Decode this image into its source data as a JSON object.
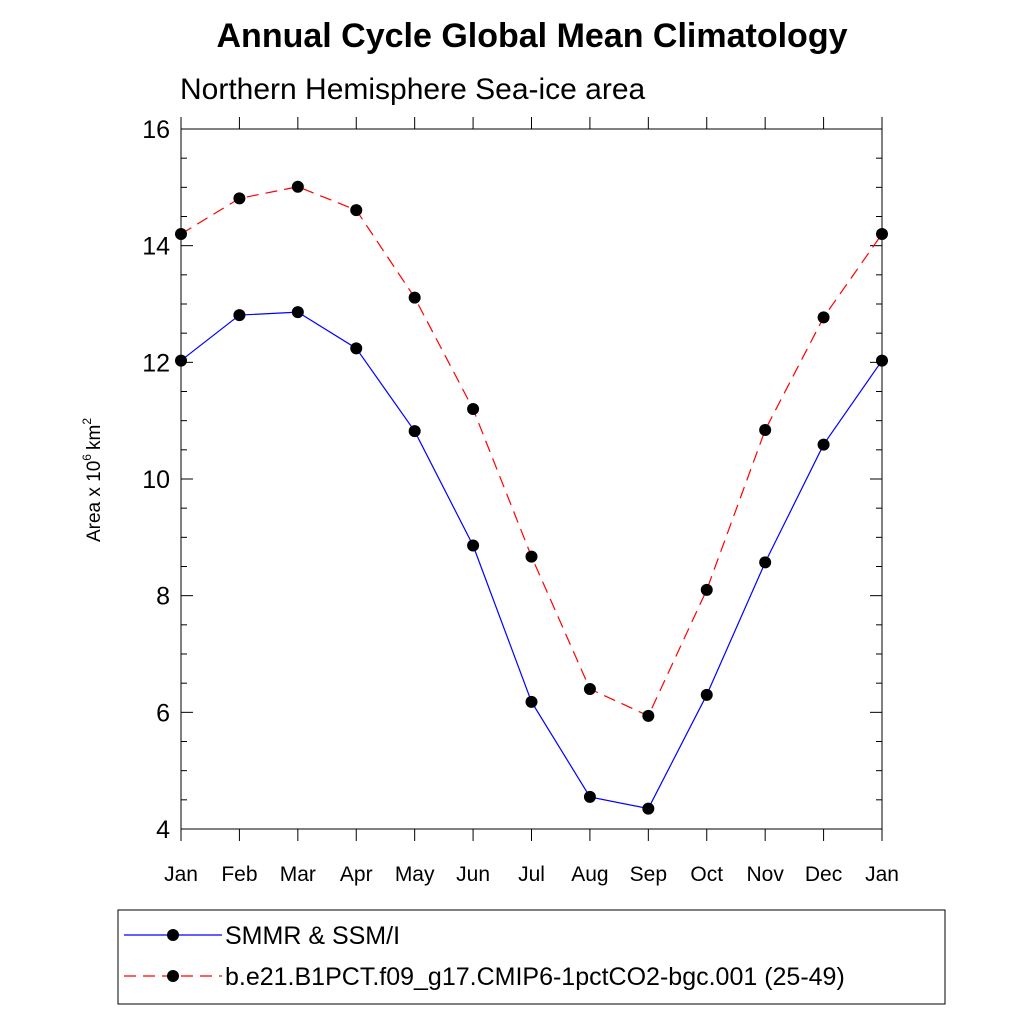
{
  "chart_data": {
    "type": "line",
    "title": "Annual Cycle Global Mean Climatology",
    "subtitle": "Northern Hemisphere Sea-ice area",
    "ylabel": "Area x 10",
    "ylabel_exponent": "6",
    "ylabel_unit": "km",
    "ylabel_unit_exponent": "2",
    "categories": [
      "Jan",
      "Feb",
      "Mar",
      "Apr",
      "May",
      "Jun",
      "Jul",
      "Aug",
      "Sep",
      "Oct",
      "Nov",
      "Dec",
      "Jan"
    ],
    "ylim": [
      4,
      16
    ],
    "yticks": [
      "4",
      "6",
      "8",
      "10",
      "12",
      "14",
      "16"
    ],
    "grid": false,
    "legend_position": "bottom",
    "series": [
      {
        "name": "SMMR & SSM/I",
        "color": "#0000ff",
        "dash": "solid",
        "marker": "filled-circle",
        "values": [
          12.03,
          12.81,
          12.86,
          12.24,
          10.82,
          8.86,
          6.18,
          4.55,
          4.35,
          6.3,
          8.57,
          10.59,
          12.03
        ]
      },
      {
        "name": "b.e21.B1PCT.f09_g17.CMIP6-1pctCO2-bgc.001 (25-49)",
        "color": "#ff0000",
        "dash": "dashed",
        "marker": "filled-circle",
        "values": [
          14.2,
          14.81,
          15.01,
          14.61,
          13.11,
          11.2,
          8.67,
          6.4,
          5.94,
          8.1,
          10.84,
          12.77,
          14.2
        ]
      }
    ]
  }
}
